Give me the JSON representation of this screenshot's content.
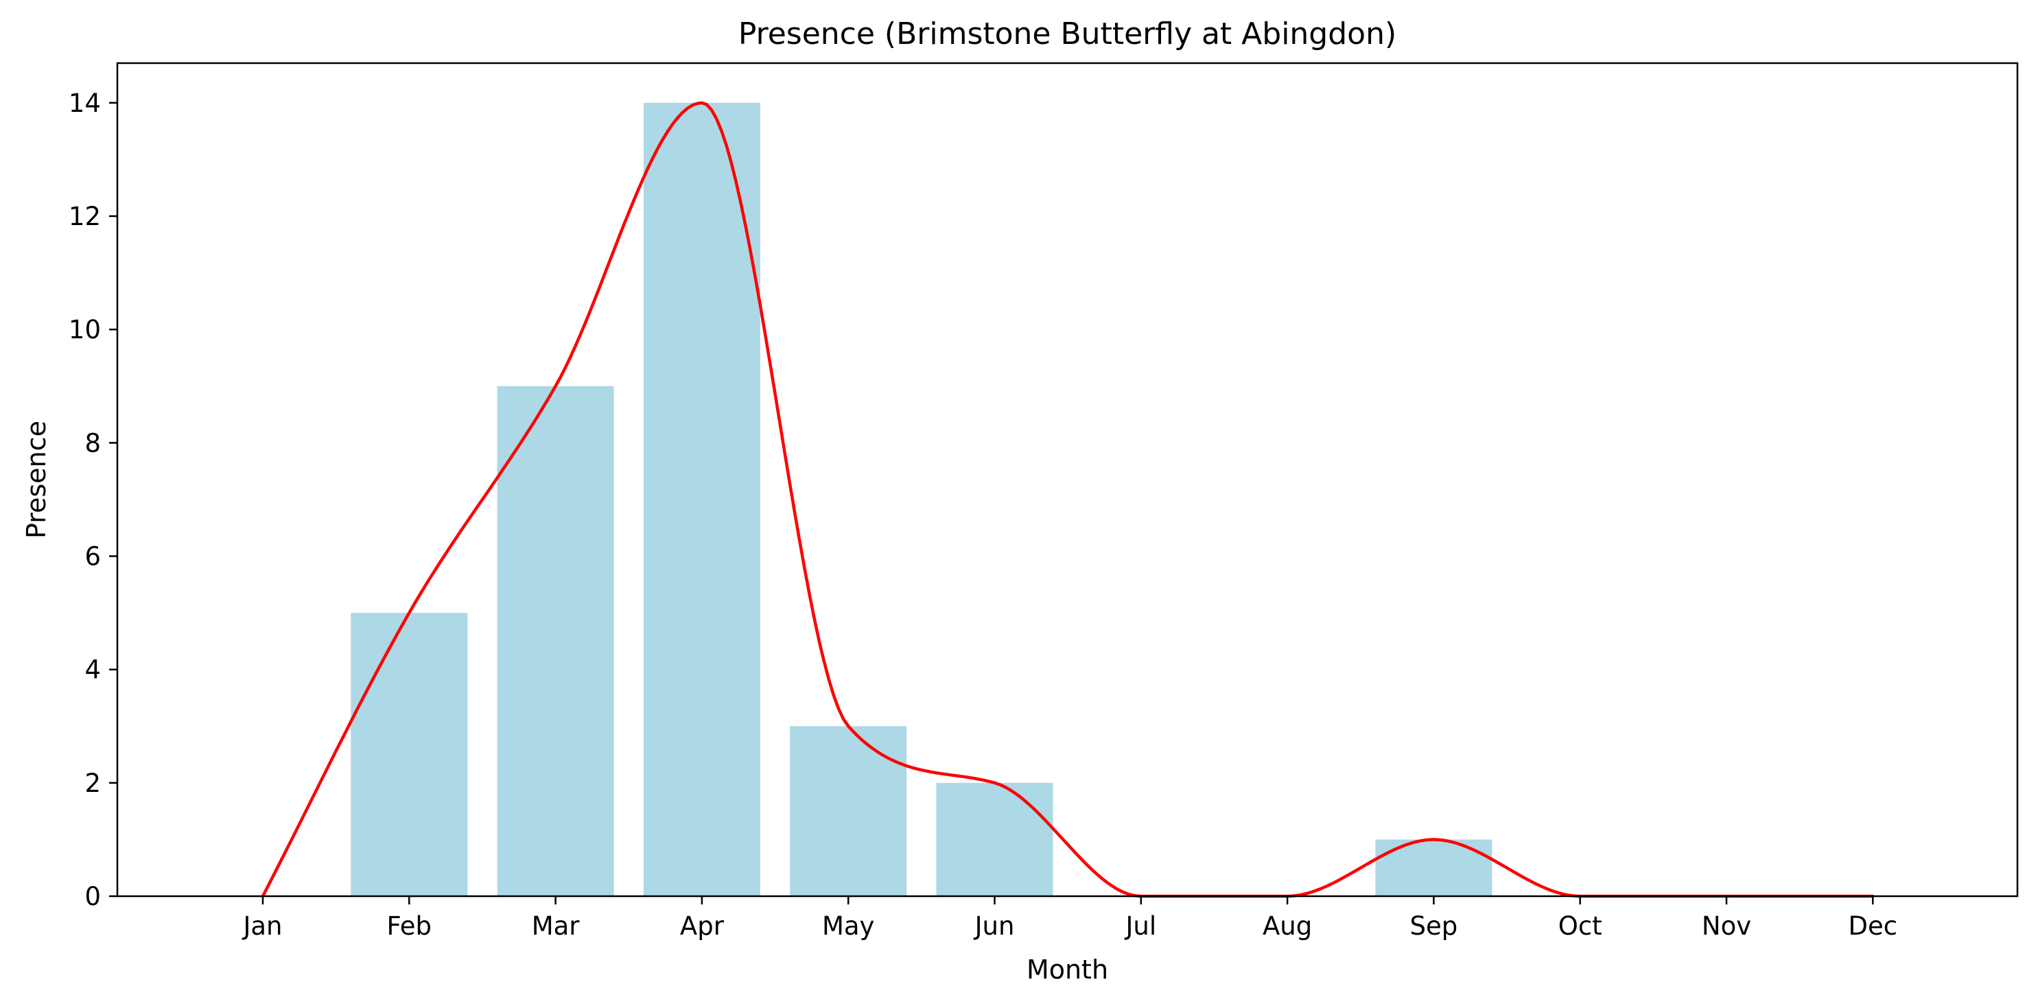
{
  "chart_data": {
    "type": "bar",
    "title": "Presence (Brimstone Butterfly at Abingdon)",
    "xlabel": "Month",
    "ylabel": "Presence",
    "categories": [
      "Jan",
      "Feb",
      "Mar",
      "Apr",
      "May",
      "Jun",
      "Jul",
      "Aug",
      "Sep",
      "Oct",
      "Nov",
      "Dec"
    ],
    "values": [
      0,
      5,
      9,
      14,
      3,
      2,
      0,
      0,
      1,
      0,
      0,
      0
    ],
    "ylim": [
      0,
      14.7
    ],
    "yticks": [
      0,
      2,
      4,
      6,
      8,
      10,
      12,
      14
    ],
    "grid": false,
    "bar_color": "#add8e6",
    "line_color": "#ff0000",
    "overlay": "smooth line through the bar values"
  }
}
